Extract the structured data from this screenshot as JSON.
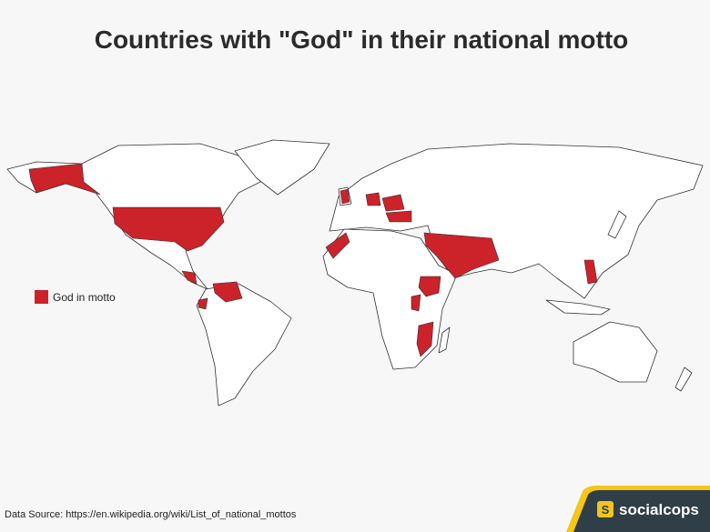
{
  "title": "Countries with \"God\" in their national motto",
  "legend": {
    "label": "God in motto",
    "color": "#cc2229"
  },
  "source": "Data Source: https://en.wikipedia.org/wiki/List_of_national_mottos",
  "brand": {
    "logo": "S",
    "name": "socialcops"
  }
}
